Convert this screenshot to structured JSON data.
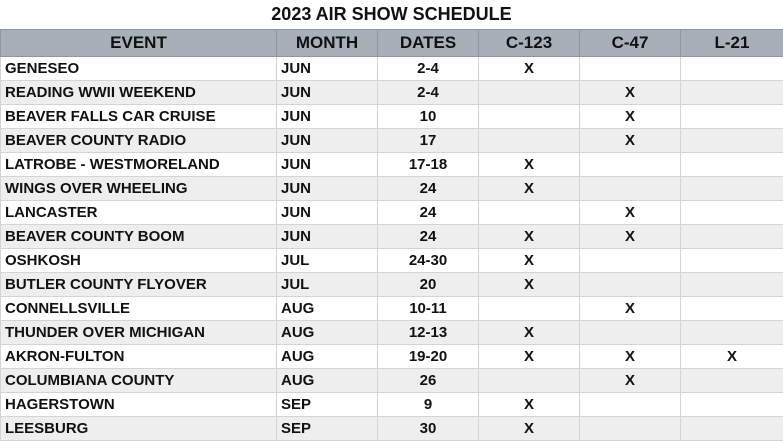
{
  "title": "2023 AIR SHOW SCHEDULE",
  "table": {
    "header": [
      "EVENT",
      "MONTH",
      "DATES",
      "C-123",
      "C-47",
      "L-21"
    ],
    "rows": [
      [
        "GENESEO",
        "JUN",
        "2-4",
        "X",
        null,
        null
      ],
      [
        "READING WWII WEEKEND",
        "JUN",
        "2-4",
        null,
        "X",
        null
      ],
      [
        "BEAVER FALLS CAR CRUISE",
        "JUN",
        "10",
        null,
        "X",
        null
      ],
      [
        "BEAVER COUNTY RADIO",
        "JUN",
        "17",
        null,
        "X",
        null
      ],
      [
        "LATROBE - WESTMORELAND",
        "JUN",
        "17-18",
        "X",
        null,
        null
      ],
      [
        "WINGS OVER WHEELING",
        "JUN",
        "24",
        "X",
        null,
        null
      ],
      [
        "LANCASTER",
        "JUN",
        "24",
        null,
        "X",
        null
      ],
      [
        "BEAVER COUNTY BOOM",
        "JUN",
        "24",
        "X",
        "X",
        null
      ],
      [
        "OSHKOSH",
        "JUL",
        "24-30",
        "X",
        null,
        null
      ],
      [
        "BUTLER COUNTY FLYOVER",
        "JUL",
        "20",
        "X",
        null,
        null
      ],
      [
        "CONNELLSVILLE",
        "AUG",
        "10-11",
        null,
        "X",
        null
      ],
      [
        "THUNDER OVER MICHIGAN",
        "AUG",
        "12-13",
        "X",
        null,
        null
      ],
      [
        "AKRON-FULTON",
        "AUG",
        "19-20",
        "X",
        "X",
        "X"
      ],
      [
        "COLUMBIANA COUNTY",
        "AUG",
        "26",
        null,
        "X",
        null
      ],
      [
        "HAGERSTOWN",
        "SEP",
        "9",
        "X",
        null,
        null
      ],
      [
        "LEESBURG",
        "SEP",
        "30",
        "X",
        null,
        null
      ]
    ]
  }
}
